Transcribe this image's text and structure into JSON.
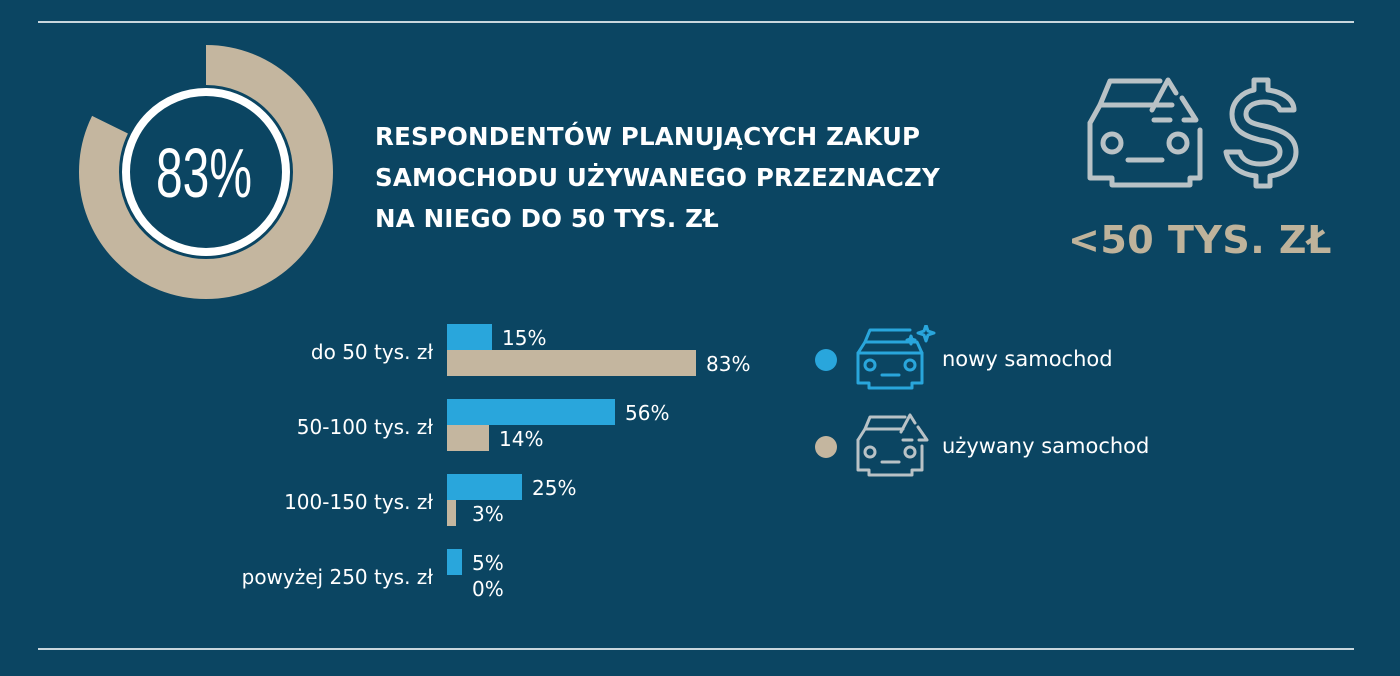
{
  "colors": {
    "background": "#0b4562",
    "accent_new": "#29a6dc",
    "accent_used": "#c4b69f",
    "icon_gray": "#b9c2c6"
  },
  "headline": {
    "line1": "RESPONDENTÓW PLANUJĄCYCH ZAKUP",
    "line2": "SAMOCHODU UŻYWANEGO PRZEZNACZY",
    "line3": "NA NIEGO DO 50 TYS. ZŁ"
  },
  "donut": {
    "label": "83%",
    "value": 83
  },
  "price_badge": {
    "text": "<50 TYS. ZŁ",
    "icons": [
      "recycled-car-icon",
      "dollar-icon"
    ]
  },
  "legend": [
    {
      "label": "nowy samochod",
      "icon": "new-car-icon",
      "color": "#29a6dc"
    },
    {
      "label": "używany samochod",
      "icon": "used-car-icon",
      "color": "#c4b69f"
    }
  ],
  "chart_data": {
    "type": "bar",
    "orientation": "horizontal",
    "categories": [
      "do 50 tys. zł",
      "50-100 tys. zł",
      "100-150 tys. zł",
      "powyżej 250 tys. zł"
    ],
    "series": [
      {
        "name": "nowy samochod",
        "values": [
          15,
          56,
          25,
          5
        ],
        "labels": [
          "15%",
          "56%",
          "25%",
          "5%"
        ]
      },
      {
        "name": "używany samochod",
        "values": [
          83,
          14,
          3,
          0
        ],
        "labels": [
          "83%",
          "14%",
          "3%",
          "0%"
        ]
      }
    ],
    "unit": "%",
    "xlim": [
      0,
      100
    ]
  }
}
